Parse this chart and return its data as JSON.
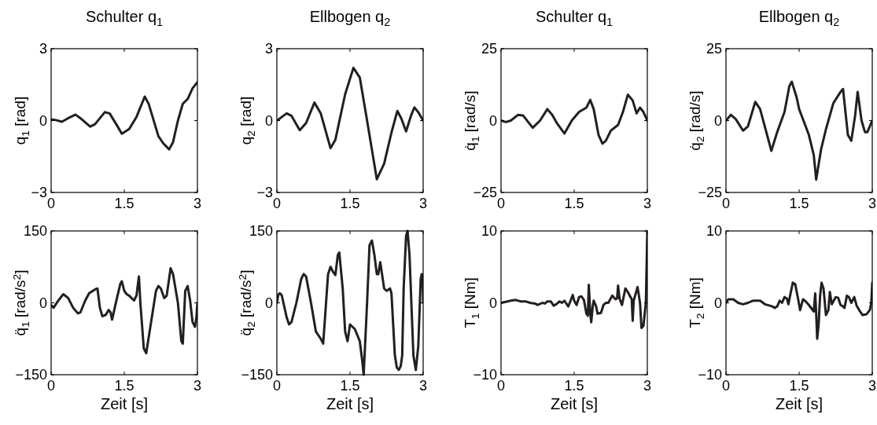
{
  "chart_data": [
    {
      "type": "line",
      "title": "Schulter q$_{1}$",
      "ylabel": "q$_{1}$  [rad]",
      "xlim": [
        0,
        3
      ],
      "ylim": [
        -3,
        3
      ],
      "xticks": [
        0,
        1.5,
        3
      ],
      "yticks": [
        -3,
        0,
        3
      ],
      "series": [
        {
          "color": "#231f20",
          "x": [
            0,
            0.1,
            0.22,
            0.35,
            0.5,
            0.6,
            0.8,
            0.9,
            1.1,
            1.2,
            1.35,
            1.45,
            1.6,
            1.75,
            1.92,
            2.0,
            2.2,
            2.3,
            2.42,
            2.5,
            2.6,
            2.7,
            2.8,
            2.9,
            3.0
          ],
          "values": [
            0.05,
            0.02,
            -0.05,
            0.1,
            0.25,
            0.1,
            -0.25,
            -0.15,
            0.35,
            0.3,
            -0.2,
            -0.55,
            -0.35,
            0.15,
            1.0,
            0.7,
            -0.65,
            -0.95,
            -1.2,
            -0.9,
            0,
            0.7,
            0.9,
            1.35,
            1.6
          ]
        }
      ]
    },
    {
      "type": "line",
      "title": "Ellbogen q$_{2}$",
      "ylabel": "q$_{2}$  [rad]",
      "xlim": [
        0,
        3
      ],
      "ylim": [
        -3,
        3
      ],
      "xticks": [
        0,
        1.5,
        3
      ],
      "yticks": [
        -3,
        0,
        3
      ],
      "series": [
        {
          "color": "#231f20",
          "x": [
            0,
            0.2,
            0.3,
            0.47,
            0.6,
            0.77,
            0.9,
            1.1,
            1.2,
            1.4,
            1.57,
            1.7,
            1.85,
            2.05,
            2.2,
            2.35,
            2.47,
            2.55,
            2.65,
            2.75,
            2.82,
            2.9,
            3.0
          ],
          "values": [
            0,
            0.3,
            0.2,
            -0.4,
            -0.1,
            0.75,
            0.3,
            -1.15,
            -0.8,
            1.1,
            2.2,
            1.8,
            0,
            -2.45,
            -1.8,
            -0.5,
            0.4,
            0.1,
            -0.45,
            0.2,
            0.55,
            0.35,
            0
          ]
        }
      ]
    },
    {
      "type": "line",
      "title": "Schulter q$_{1}$",
      "ylabel": "q̇$_{1}$  [rad/s]",
      "xlim": [
        0,
        3
      ],
      "ylim": [
        -25,
        25
      ],
      "xticks": [
        0,
        1.5,
        3
      ],
      "yticks": [
        -25,
        0,
        25
      ],
      "series": [
        {
          "color": "#231f20",
          "x": [
            0,
            0.1,
            0.2,
            0.35,
            0.45,
            0.65,
            0.8,
            0.95,
            1.05,
            1.15,
            1.3,
            1.45,
            1.6,
            1.75,
            1.83,
            1.9,
            2.0,
            2.08,
            2.15,
            2.25,
            2.4,
            2.5,
            2.6,
            2.7,
            2.78,
            2.85,
            2.92,
            3.0
          ],
          "values": [
            0,
            -0.5,
            0,
            2,
            1.8,
            -2.5,
            0,
            4,
            2,
            -1,
            -4.5,
            0,
            3,
            4.5,
            7.2,
            4,
            -5,
            -8,
            -7,
            -3.5,
            -1.5,
            3,
            9,
            7,
            2.5,
            4.5,
            3,
            0
          ]
        }
      ]
    },
    {
      "type": "line",
      "title": "Ellbogen q$_{2}$",
      "ylabel": "q̇$_{2}$  [rad/s]",
      "xlim": [
        0,
        3
      ],
      "ylim": [
        -25,
        25
      ],
      "xticks": [
        0,
        1.5,
        3
      ],
      "yticks": [
        -25,
        0,
        25
      ],
      "series": [
        {
          "color": "#231f20",
          "x": [
            0,
            0.1,
            0.2,
            0.35,
            0.45,
            0.6,
            0.7,
            0.93,
            1.05,
            1.2,
            1.3,
            1.35,
            1.45,
            1.5,
            1.7,
            1.8,
            1.85,
            1.95,
            2.05,
            2.2,
            2.35,
            2.4,
            2.5,
            2.57,
            2.65,
            2.7,
            2.78,
            2.85,
            2.9,
            3.0
          ],
          "values": [
            0,
            2,
            0.5,
            -3.5,
            -2,
            6.5,
            4,
            -10.5,
            -4,
            3,
            12,
            13.5,
            8,
            4,
            -5,
            -12,
            -20.5,
            -10,
            -3,
            6,
            10,
            11,
            -5,
            -7,
            2,
            10,
            0,
            -4,
            -4,
            0
          ]
        }
      ]
    },
    {
      "type": "line",
      "xlabel": "Zeit [s]",
      "ylabel": "q̈$_{1}$  [rad/s$^{2}$]",
      "xlim": [
        0,
        3
      ],
      "ylim": [
        -150,
        150
      ],
      "xticks": [
        0,
        1.5,
        3
      ],
      "yticks": [
        -150,
        0,
        150
      ],
      "series": [
        {
          "color": "#231f20",
          "x": [
            0,
            0.05,
            0.15,
            0.25,
            0.35,
            0.45,
            0.55,
            0.6,
            0.7,
            0.78,
            0.9,
            0.95,
            1.0,
            1.05,
            1.12,
            1.18,
            1.22,
            1.25,
            1.35,
            1.42,
            1.45,
            1.5,
            1.55,
            1.6,
            1.7,
            1.75,
            1.8,
            1.83,
            1.9,
            1.95,
            2.05,
            2.15,
            2.2,
            2.25,
            2.32,
            2.37,
            2.45,
            2.5,
            2.6,
            2.67,
            2.7,
            2.75,
            2.8,
            2.85,
            2.9,
            2.95,
            2.98,
            3.0
          ],
          "values": [
            -5,
            -10,
            5,
            18,
            10,
            -10,
            -22,
            -20,
            5,
            20,
            28,
            30,
            -10,
            -28,
            -25,
            -15,
            -20,
            -35,
            10,
            40,
            45,
            25,
            18,
            15,
            5,
            15,
            55,
            0,
            -95,
            -105,
            -40,
            25,
            35,
            30,
            10,
            15,
            72,
            60,
            0,
            -80,
            -85,
            25,
            35,
            5,
            -40,
            -50,
            -30,
            0
          ]
        }
      ]
    },
    {
      "type": "line",
      "xlabel": "Zeit [s]",
      "ylabel": "q̈$_{2}$  [rad/s$^{2}$]",
      "xlim": [
        0,
        3
      ],
      "ylim": [
        -150,
        150
      ],
      "xticks": [
        0,
        1.5,
        3
      ],
      "yticks": [
        -150,
        0,
        150
      ],
      "series": [
        {
          "color": "#231f20",
          "x": [
            0,
            0.03,
            0.06,
            0.1,
            0.2,
            0.25,
            0.3,
            0.4,
            0.5,
            0.55,
            0.6,
            0.7,
            0.8,
            0.9,
            0.95,
            1.05,
            1.1,
            1.15,
            1.2,
            1.25,
            1.28,
            1.35,
            1.4,
            1.45,
            1.5,
            1.6,
            1.7,
            1.75,
            1.78,
            1.85,
            1.9,
            1.95,
            2.0,
            2.05,
            2.08,
            2.12,
            2.2,
            2.25,
            2.32,
            2.35,
            2.42,
            2.46,
            2.5,
            2.54,
            2.57,
            2.6,
            2.65,
            2.68,
            2.72,
            2.8,
            2.85,
            2.9,
            2.95,
            2.97,
            2.99,
            3.0
          ],
          "values": [
            0,
            17,
            20,
            16,
            -30,
            -45,
            -40,
            0,
            50,
            60,
            55,
            0,
            -60,
            -75,
            -85,
            60,
            75,
            65,
            58,
            100,
            105,
            30,
            -60,
            -80,
            -45,
            -55,
            -80,
            -120,
            -150,
            0,
            120,
            130,
            100,
            60,
            60,
            85,
            30,
            25,
            30,
            20,
            -110,
            -135,
            -140,
            -132,
            -110,
            30,
            140,
            150,
            100,
            -110,
            -140,
            -90,
            50,
            60,
            58,
            0
          ]
        }
      ]
    },
    {
      "type": "line",
      "xlabel": "Zeit [s]",
      "ylabel": "T$_{1}$  [Nm]",
      "xlim": [
        0,
        3
      ],
      "ylim": [
        -10,
        10
      ],
      "xticks": [
        0,
        1.5,
        3
      ],
      "yticks": [
        -10,
        0,
        10
      ],
      "series": [
        {
          "color": "#231f20",
          "x": [
            0,
            0.2,
            0.3,
            0.4,
            0.5,
            0.6,
            0.7,
            0.75,
            0.85,
            0.9,
            0.95,
            1.02,
            1.08,
            1.15,
            1.2,
            1.25,
            1.3,
            1.38,
            1.42,
            1.47,
            1.5,
            1.55,
            1.6,
            1.65,
            1.7,
            1.75,
            1.78,
            1.8,
            1.83,
            1.85,
            1.88,
            1.9,
            1.95,
            1.98,
            2.05,
            2.1,
            2.15,
            2.2,
            2.28,
            2.35,
            2.38,
            2.4,
            2.43,
            2.48,
            2.55,
            2.6,
            2.68,
            2.7,
            2.72,
            2.8,
            2.85,
            2.88,
            2.92,
            2.97,
            3.0
          ],
          "values": [
            0,
            0.3,
            0.4,
            0.2,
            0.2,
            0,
            -0.1,
            -0.3,
            0,
            -0.1,
            0.2,
            0.2,
            -0.4,
            -0.1,
            0.2,
            0,
            0.3,
            -0.5,
            0.2,
            1.1,
            0.3,
            -0.3,
            0.8,
            0.9,
            0.4,
            -1.5,
            -1.8,
            2.5,
            -1.5,
            -2.7,
            -0.5,
            0.3,
            -0.5,
            -1.5,
            -1.4,
            -0.3,
            0,
            0,
            1,
            0.5,
            0.6,
            2.4,
            0.6,
            -0.3,
            2,
            1.5,
            0.5,
            -2.5,
            0.3,
            2.2,
            0,
            -3.5,
            -3.2,
            0,
            10
          ]
        }
      ]
    },
    {
      "type": "line",
      "xlabel": "Zeit [s]",
      "ylabel": "T$_{2}$  [Nm]",
      "xlim": [
        0,
        3
      ],
      "ylim": [
        -10,
        10
      ],
      "xticks": [
        0,
        1.5,
        3
      ],
      "yticks": [
        -10,
        0,
        10
      ],
      "series": [
        {
          "color": "#231f20",
          "x": [
            0,
            0.05,
            0.15,
            0.25,
            0.35,
            0.45,
            0.55,
            0.7,
            0.8,
            0.9,
            0.95,
            1.0,
            1.05,
            1.1,
            1.15,
            1.2,
            1.25,
            1.28,
            1.33,
            1.37,
            1.42,
            1.48,
            1.52,
            1.58,
            1.62,
            1.7,
            1.8,
            1.83,
            1.85,
            1.87,
            1.9,
            1.93,
            1.96,
            2.0,
            2.05,
            2.1,
            2.13,
            2.17,
            2.25,
            2.3,
            2.35,
            2.4,
            2.43,
            2.48,
            2.52,
            2.57,
            2.63,
            2.68,
            2.75,
            2.8,
            2.88,
            2.95,
            2.98,
            3.0
          ],
          "values": [
            0,
            0.5,
            0.5,
            0,
            -0.2,
            0,
            0.3,
            0.3,
            -0.2,
            -0.4,
            -0.5,
            -0.7,
            -0.5,
            0.3,
            0,
            0.8,
            0.6,
            -0.2,
            1.5,
            2.8,
            2.6,
            0.5,
            -1,
            0.5,
            0.3,
            -0.3,
            -1.2,
            1.3,
            -1.5,
            -5,
            -3,
            1,
            2.8,
            2,
            -1.7,
            -1,
            1.5,
            -0.2,
            0.8,
            0.7,
            -0.3,
            -0.5,
            -0.7,
            1,
            0.8,
            0,
            0.8,
            -0.4,
            -1.2,
            -1.7,
            -1.6,
            -1.0,
            0,
            2.8
          ]
        }
      ]
    }
  ]
}
